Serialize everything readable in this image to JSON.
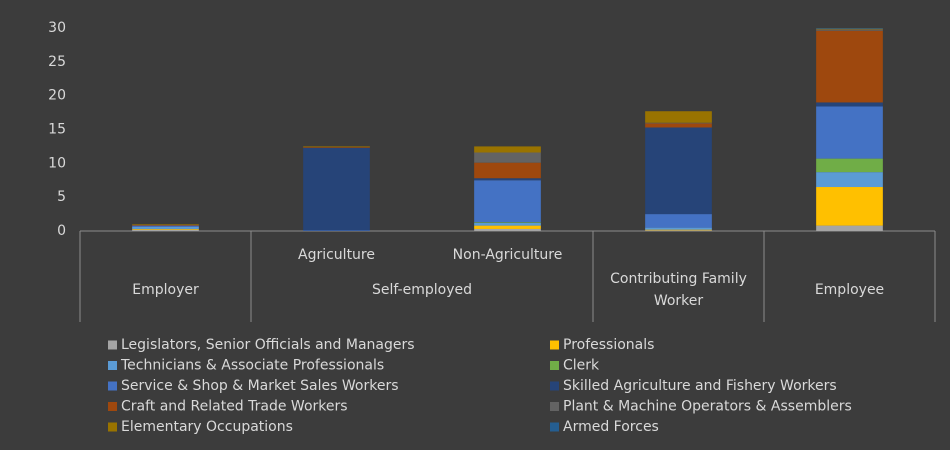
{
  "chart_data": {
    "type": "stacked_bar",
    "groups": [
      {
        "label": "Employer",
        "categories": [
          null
        ]
      },
      {
        "label": "Self-employed",
        "categories": [
          "Agriculture",
          "Non-Agriculture"
        ]
      },
      {
        "label": "Contributing Family Worker",
        "categories": [
          null
        ]
      },
      {
        "label": "Employee",
        "categories": [
          null
        ]
      }
    ],
    "series": [
      {
        "name": "Legislators, Senior Officials and Managers",
        "color": "#a5a5a5",
        "values": [
          0.2,
          0,
          0.3,
          0.1,
          0.8
        ]
      },
      {
        "name": "Professionals",
        "color": "#ffc000",
        "values": [
          0.1,
          0,
          0.5,
          0.1,
          5.7
        ]
      },
      {
        "name": "Technicians & Associate Professionals",
        "color": "#5b9bd5",
        "values": [
          0.3,
          0,
          0.4,
          0.3,
          2.2
        ]
      },
      {
        "name": "Clerk",
        "color": "#70ad47",
        "values": [
          0,
          0,
          0.1,
          0,
          2.0
        ]
      },
      {
        "name": "Service & Shop & Market Sales Workers",
        "color": "#4472c4",
        "values": [
          0.2,
          0.1,
          6.2,
          2.0,
          7.7
        ]
      },
      {
        "name": "Skilled Agriculture and Fishery Workers",
        "color": "#264478",
        "values": [
          0,
          12.2,
          0.3,
          12.8,
          0.6
        ]
      },
      {
        "name": "Craft and Related Trade Workers",
        "color": "#9e480e",
        "values": [
          0.1,
          0.1,
          2.3,
          0.6,
          10.6
        ]
      },
      {
        "name": "Plant & Machine Operators & Assemblers",
        "color": "#636363",
        "values": [
          0,
          0,
          1.5,
          0.1,
          0.2
        ]
      },
      {
        "name": "Elementary Occupations",
        "color": "#997300",
        "values": [
          0.1,
          0.1,
          0.9,
          1.7,
          0.1
        ]
      },
      {
        "name": "Armed Forces",
        "color": "#255e91",
        "values": [
          0,
          0,
          0,
          0,
          0.1
        ]
      }
    ],
    "ylim": [
      0,
      30
    ],
    "yticks": [
      0,
      5,
      10,
      15,
      20,
      25,
      30
    ]
  }
}
